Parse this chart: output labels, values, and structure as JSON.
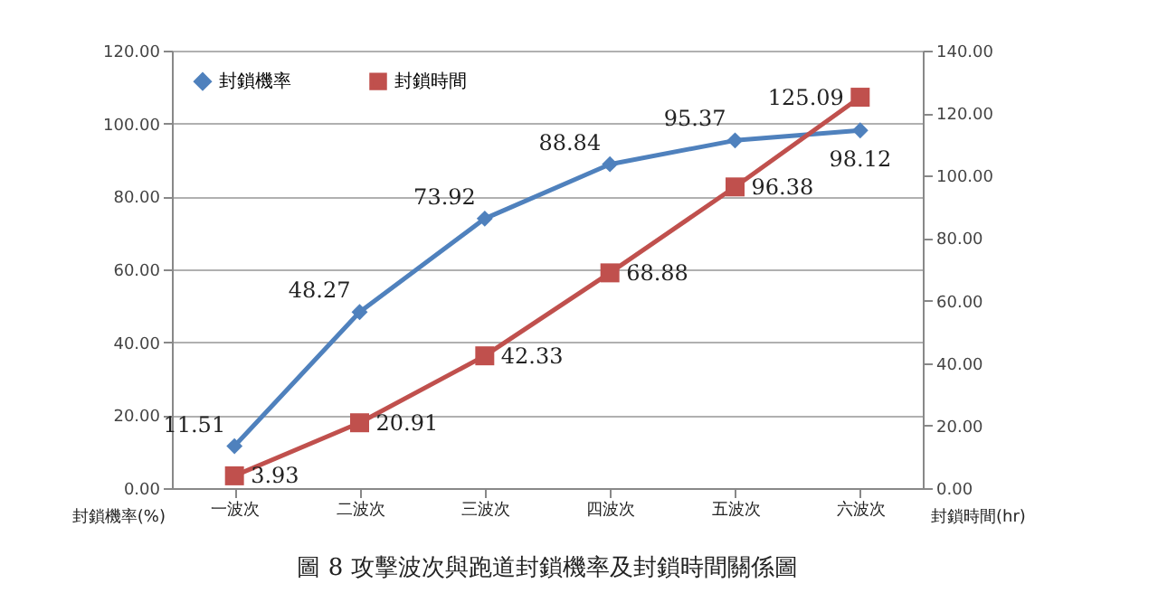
{
  "chart_data": {
    "type": "line",
    "title": "圖 8 攻擊波次與跑道封鎖機率及封鎖時間關係圖",
    "ylabel": "封鎖機率(%)",
    "y2label": "封鎖時間(hr)",
    "categories": [
      "一波次",
      "二波次",
      "三波次",
      "四波次",
      "五波次",
      "六波次"
    ],
    "series": [
      {
        "name": "封鎖機率",
        "color": "#4f81bd",
        "marker": "diamond",
        "values": [
          11.51,
          48.27,
          73.92,
          88.84,
          95.37,
          98.12
        ]
      },
      {
        "name": "封鎖時間",
        "color": "#c0504d",
        "marker": "square",
        "axis": "y2",
        "values": [
          3.93,
          20.91,
          42.33,
          68.88,
          96.38,
          125.09
        ]
      }
    ],
    "ylim": [
      0,
      120
    ],
    "yticks": [
      {
        "value": 0,
        "label": "0.00"
      },
      {
        "value": 20,
        "label": "20.00"
      },
      {
        "value": 40,
        "label": "40.00"
      },
      {
        "value": 60,
        "label": "60.00"
      },
      {
        "value": 80,
        "label": "80.00"
      },
      {
        "value": 100,
        "label": "100.00"
      },
      {
        "value": 120,
        "label": "120.00"
      }
    ],
    "y2lim": [
      0,
      140
    ],
    "y2ticks": [
      {
        "value": 0,
        "label": "0.00"
      },
      {
        "value": 20,
        "label": "20.00"
      },
      {
        "value": 40,
        "label": "40.00"
      },
      {
        "value": 60,
        "label": "60.00"
      },
      {
        "value": 80,
        "label": "80.00"
      },
      {
        "value": 100,
        "label": "100.00"
      },
      {
        "value": 120,
        "label": "120.00"
      },
      {
        "value": 140,
        "label": "140.00"
      }
    ],
    "grid": "y",
    "legend": "top left",
    "data_labels": true,
    "line_style": "solid"
  }
}
